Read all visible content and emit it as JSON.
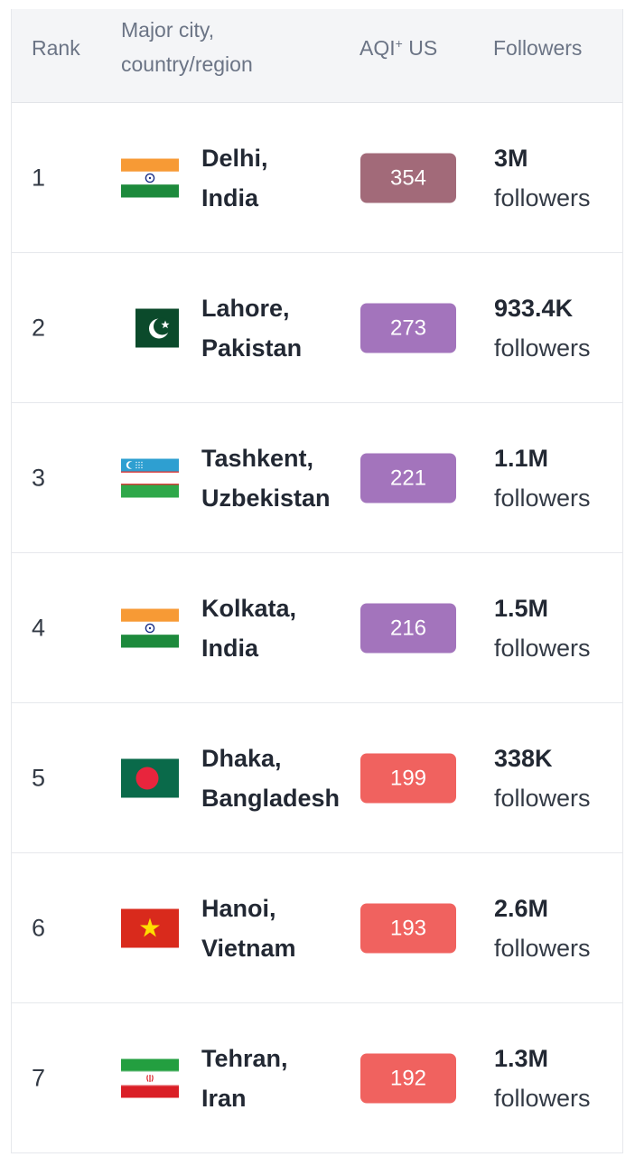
{
  "header": {
    "rank": "Rank",
    "city_line1": "Major city,",
    "city_line2": "country/region",
    "aqi_main": "AQI",
    "aqi_sup": "+",
    "aqi_suffix": " US",
    "followers": "Followers"
  },
  "colors": {
    "very_unhealthy": "#a26a79",
    "unhealthy_purple": "#a374bc",
    "unhealthy_red": "#f0625f"
  },
  "rows": [
    {
      "rank": "1",
      "city": "Delhi,",
      "country": "India",
      "flag": "india-flag",
      "aqi": "354",
      "aqi_color": "#a26a79",
      "followers": "3M",
      "followers_label": "followers"
    },
    {
      "rank": "2",
      "city": "Lahore,",
      "country": "Pakistan",
      "flag": "pakistan-flag",
      "aqi": "273",
      "aqi_color": "#a374bc",
      "followers": "933.4K",
      "followers_label": "followers"
    },
    {
      "rank": "3",
      "city": "Tashkent,",
      "country": "Uzbekistan",
      "flag": "uzbekistan-flag",
      "aqi": "221",
      "aqi_color": "#a374bc",
      "followers": "1.1M",
      "followers_label": "followers"
    },
    {
      "rank": "4",
      "city": "Kolkata,",
      "country": "India",
      "flag": "india-flag",
      "aqi": "216",
      "aqi_color": "#a374bc",
      "followers": "1.5M",
      "followers_label": "followers"
    },
    {
      "rank": "5",
      "city": "Dhaka,",
      "country": "Bangladesh",
      "flag": "bangladesh-flag",
      "aqi": "199",
      "aqi_color": "#f0625f",
      "followers": "338K",
      "followers_label": "followers"
    },
    {
      "rank": "6",
      "city": "Hanoi,",
      "country": "Vietnam",
      "flag": "vietnam-flag",
      "aqi": "193",
      "aqi_color": "#f0625f",
      "followers": "2.6M",
      "followers_label": "followers"
    },
    {
      "rank": "7",
      "city": "Tehran,",
      "country": "Iran",
      "flag": "iran-flag",
      "aqi": "192",
      "aqi_color": "#f0625f",
      "followers": "1.3M",
      "followers_label": "followers"
    }
  ]
}
